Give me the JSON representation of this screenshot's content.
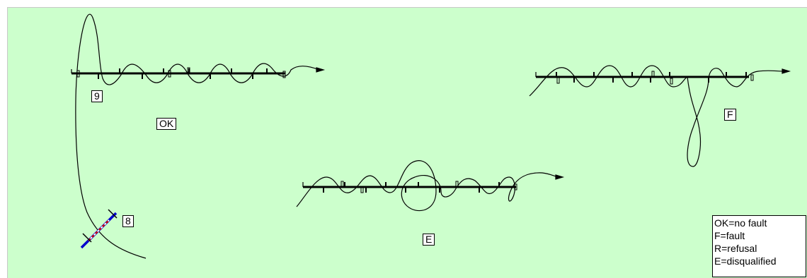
{
  "labels": {
    "ok": "OK",
    "f": "F",
    "e": "E",
    "obstacle_9": "9",
    "obstacle_8": "8"
  },
  "legend": {
    "items": [
      "OK=no fault",
      "F=fault",
      "R=refusal",
      "E=disqualified"
    ]
  },
  "colors": {
    "background": "#ccffcc",
    "ink": "#000000",
    "obstacle_pole": "#0000cc",
    "obstacle_stripe": "#cc0000"
  }
}
